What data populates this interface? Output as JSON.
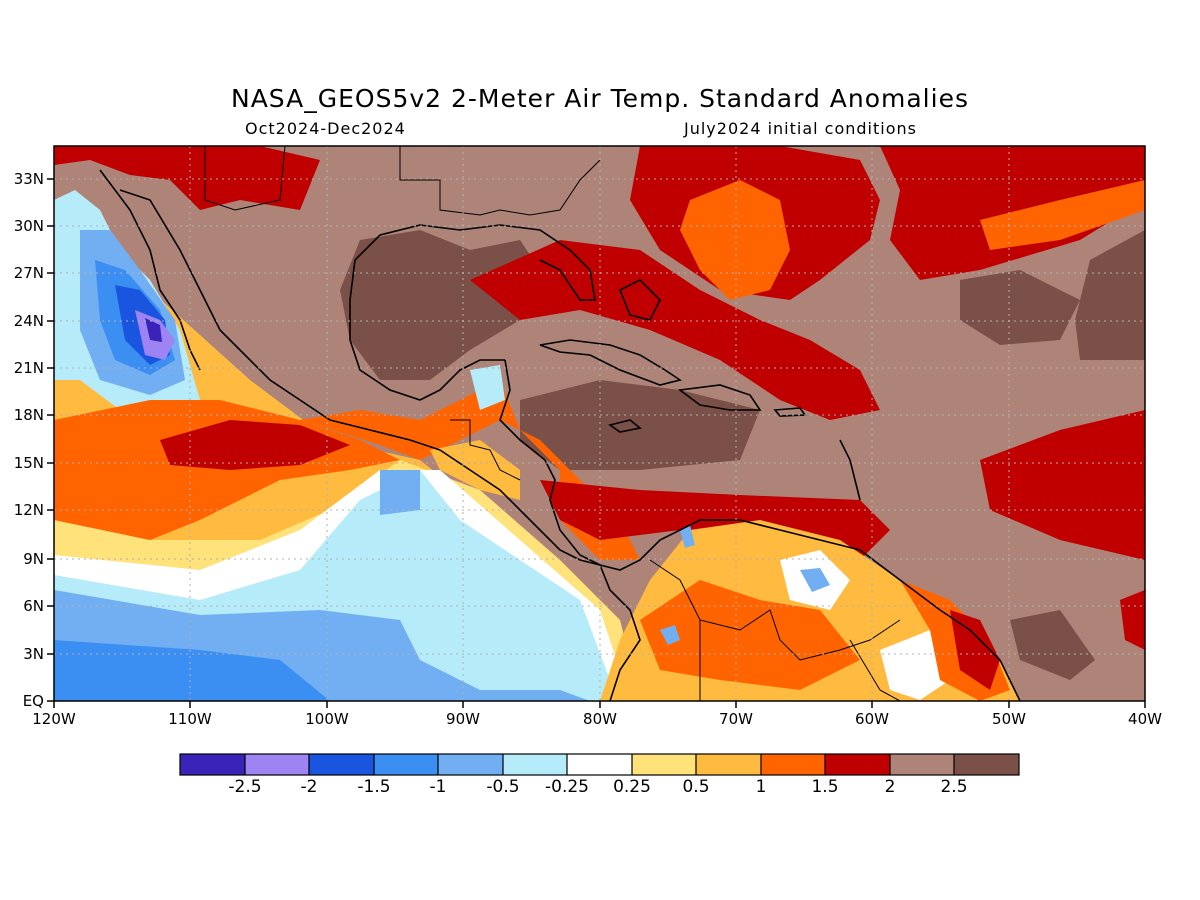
{
  "title": "NASA_GEOS5v2 2-Meter Air Temp. Standard Anomalies",
  "subtitle_left": "Oct2024-Dec2024",
  "subtitle_right": "July2024 initial conditions",
  "colors": {
    "below_neg2_5": "#3a23b8",
    "neg2_5_to_neg2": "#9d84f2",
    "neg2_to_neg1_5": "#1a55e0",
    "neg1_5_to_neg1": "#3b8ef2",
    "neg1_to_neg0_5": "#71aef2",
    "neg0_5_to_neg0_25": "#b6ecf9",
    "neutral": "#ffffff",
    "p0_25_to_0_5": "#ffe27a",
    "p0_5_to_1": "#ffbb40",
    "p1_to_1_5": "#ff6400",
    "p1_5_to_2": "#c00000",
    "p2_to_2_5": "#ae8478",
    "above_2_5": "#7b5048",
    "coast": "#000000",
    "grid": "#b0b0b0"
  },
  "y_axis_labels": [
    "33N",
    "30N",
    "27N",
    "24N",
    "21N",
    "18N",
    "15N",
    "12N",
    "9N",
    "6N",
    "3N",
    "EQ"
  ],
  "x_axis_labels": [
    "120W",
    "110W",
    "100W",
    "90W",
    "80W",
    "70W",
    "60W",
    "50W",
    "40W"
  ],
  "colorbar_labels": [
    "-2.5",
    "-2",
    "-1.5",
    "-1",
    "-0.5",
    "-0.25",
    "0.25",
    "0.5",
    "1",
    "1.5",
    "2",
    "2.5"
  ]
}
